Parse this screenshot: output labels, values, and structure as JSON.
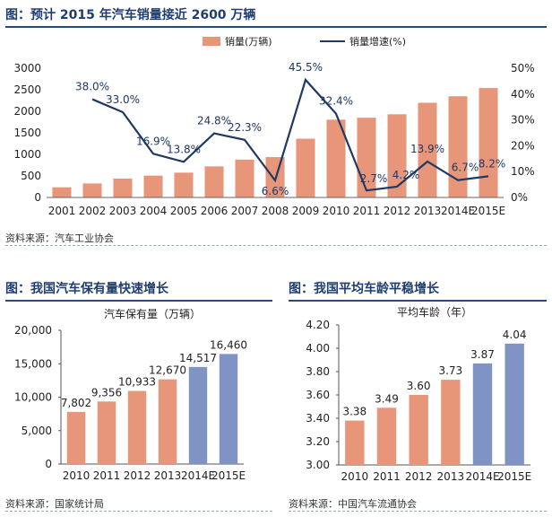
{
  "chart_data": [
    {
      "type": "bar+line",
      "title": "图：预计 2015 年汽车销量接近 2600 万辆",
      "categories": [
        "2001",
        "2002",
        "2003",
        "2004",
        "2005",
        "2006",
        "2007",
        "2008",
        "2009",
        "2010",
        "2011",
        "2012",
        "2013",
        "2014E",
        "2015E"
      ],
      "series": [
        {
          "name": "销量(万辆)",
          "type": "bar",
          "axis": "left",
          "values": [
            236,
            325,
            439,
            507,
            576,
            722,
            879,
            938,
            1364,
            1806,
            1851,
            1931,
            2198,
            2349,
            2540
          ]
        },
        {
          "name": "销量增速(%)",
          "type": "line",
          "axis": "right",
          "values": [
            null,
            38.0,
            33.0,
            16.9,
            13.8,
            24.8,
            22.3,
            6.6,
            45.5,
            32.4,
            2.7,
            4.2,
            13.9,
            6.7,
            8.2
          ],
          "labels": [
            "",
            "38.0%",
            "33.0%",
            "16.9%",
            "13.8%",
            "24.8%",
            "22.3%",
            "6.6%",
            "45.5%",
            "32.4%",
            "2.7%",
            "4.2%",
            "13.9%",
            "6.7%",
            "8.2%"
          ]
        }
      ],
      "ylim_left": [
        0,
        3000
      ],
      "yticks_left": [
        "0",
        "500",
        "1000",
        "1500",
        "2000",
        "2500",
        "3000"
      ],
      "ylim_right": [
        0,
        50
      ],
      "yticks_right": [
        "0%",
        "10%",
        "20%",
        "30%",
        "40%",
        "50%"
      ],
      "legend_position": "top-right",
      "source": "资料来源：汽车工业协会",
      "colors": {
        "bar": "#e8967a",
        "line": "#1f3864"
      }
    },
    {
      "type": "bar",
      "title": "图：我国汽车保有量快速增长",
      "subtitle": "汽车保有量（万辆）",
      "categories": [
        "2010",
        "2011",
        "2012",
        "2013",
        "2014E",
        "2015E"
      ],
      "values": [
        7802,
        9356,
        10933,
        12670,
        14517,
        16460
      ],
      "value_labels": [
        "7,802",
        "9,356",
        "10,933",
        "12,670",
        "14,517",
        "16,460"
      ],
      "ylim": [
        0,
        20000
      ],
      "yticks": [
        "0",
        "5,000",
        "10,000",
        "15,000",
        "20,000"
      ],
      "source": "资料来源：国家统计局",
      "colors": {
        "actual": "#e8967a",
        "estimate": "#7f93c4"
      }
    },
    {
      "type": "bar",
      "title": "图：我国平均车龄平稳增长",
      "subtitle": "平均车龄（年）",
      "categories": [
        "2010",
        "2011",
        "2012",
        "2013",
        "2014E",
        "2015E"
      ],
      "values": [
        3.38,
        3.49,
        3.6,
        3.73,
        3.87,
        4.04
      ],
      "value_labels": [
        "3.38",
        "3.49",
        "3.60",
        "3.73",
        "3.87",
        "4.04"
      ],
      "ylim": [
        3.0,
        4.2
      ],
      "yticks": [
        "3.00",
        "3.20",
        "3.40",
        "3.60",
        "3.80",
        "4.00",
        "4.20"
      ],
      "source": "资料来源：中国汽车流通协会",
      "colors": {
        "actual": "#e8967a",
        "estimate": "#7f93c4"
      }
    }
  ]
}
